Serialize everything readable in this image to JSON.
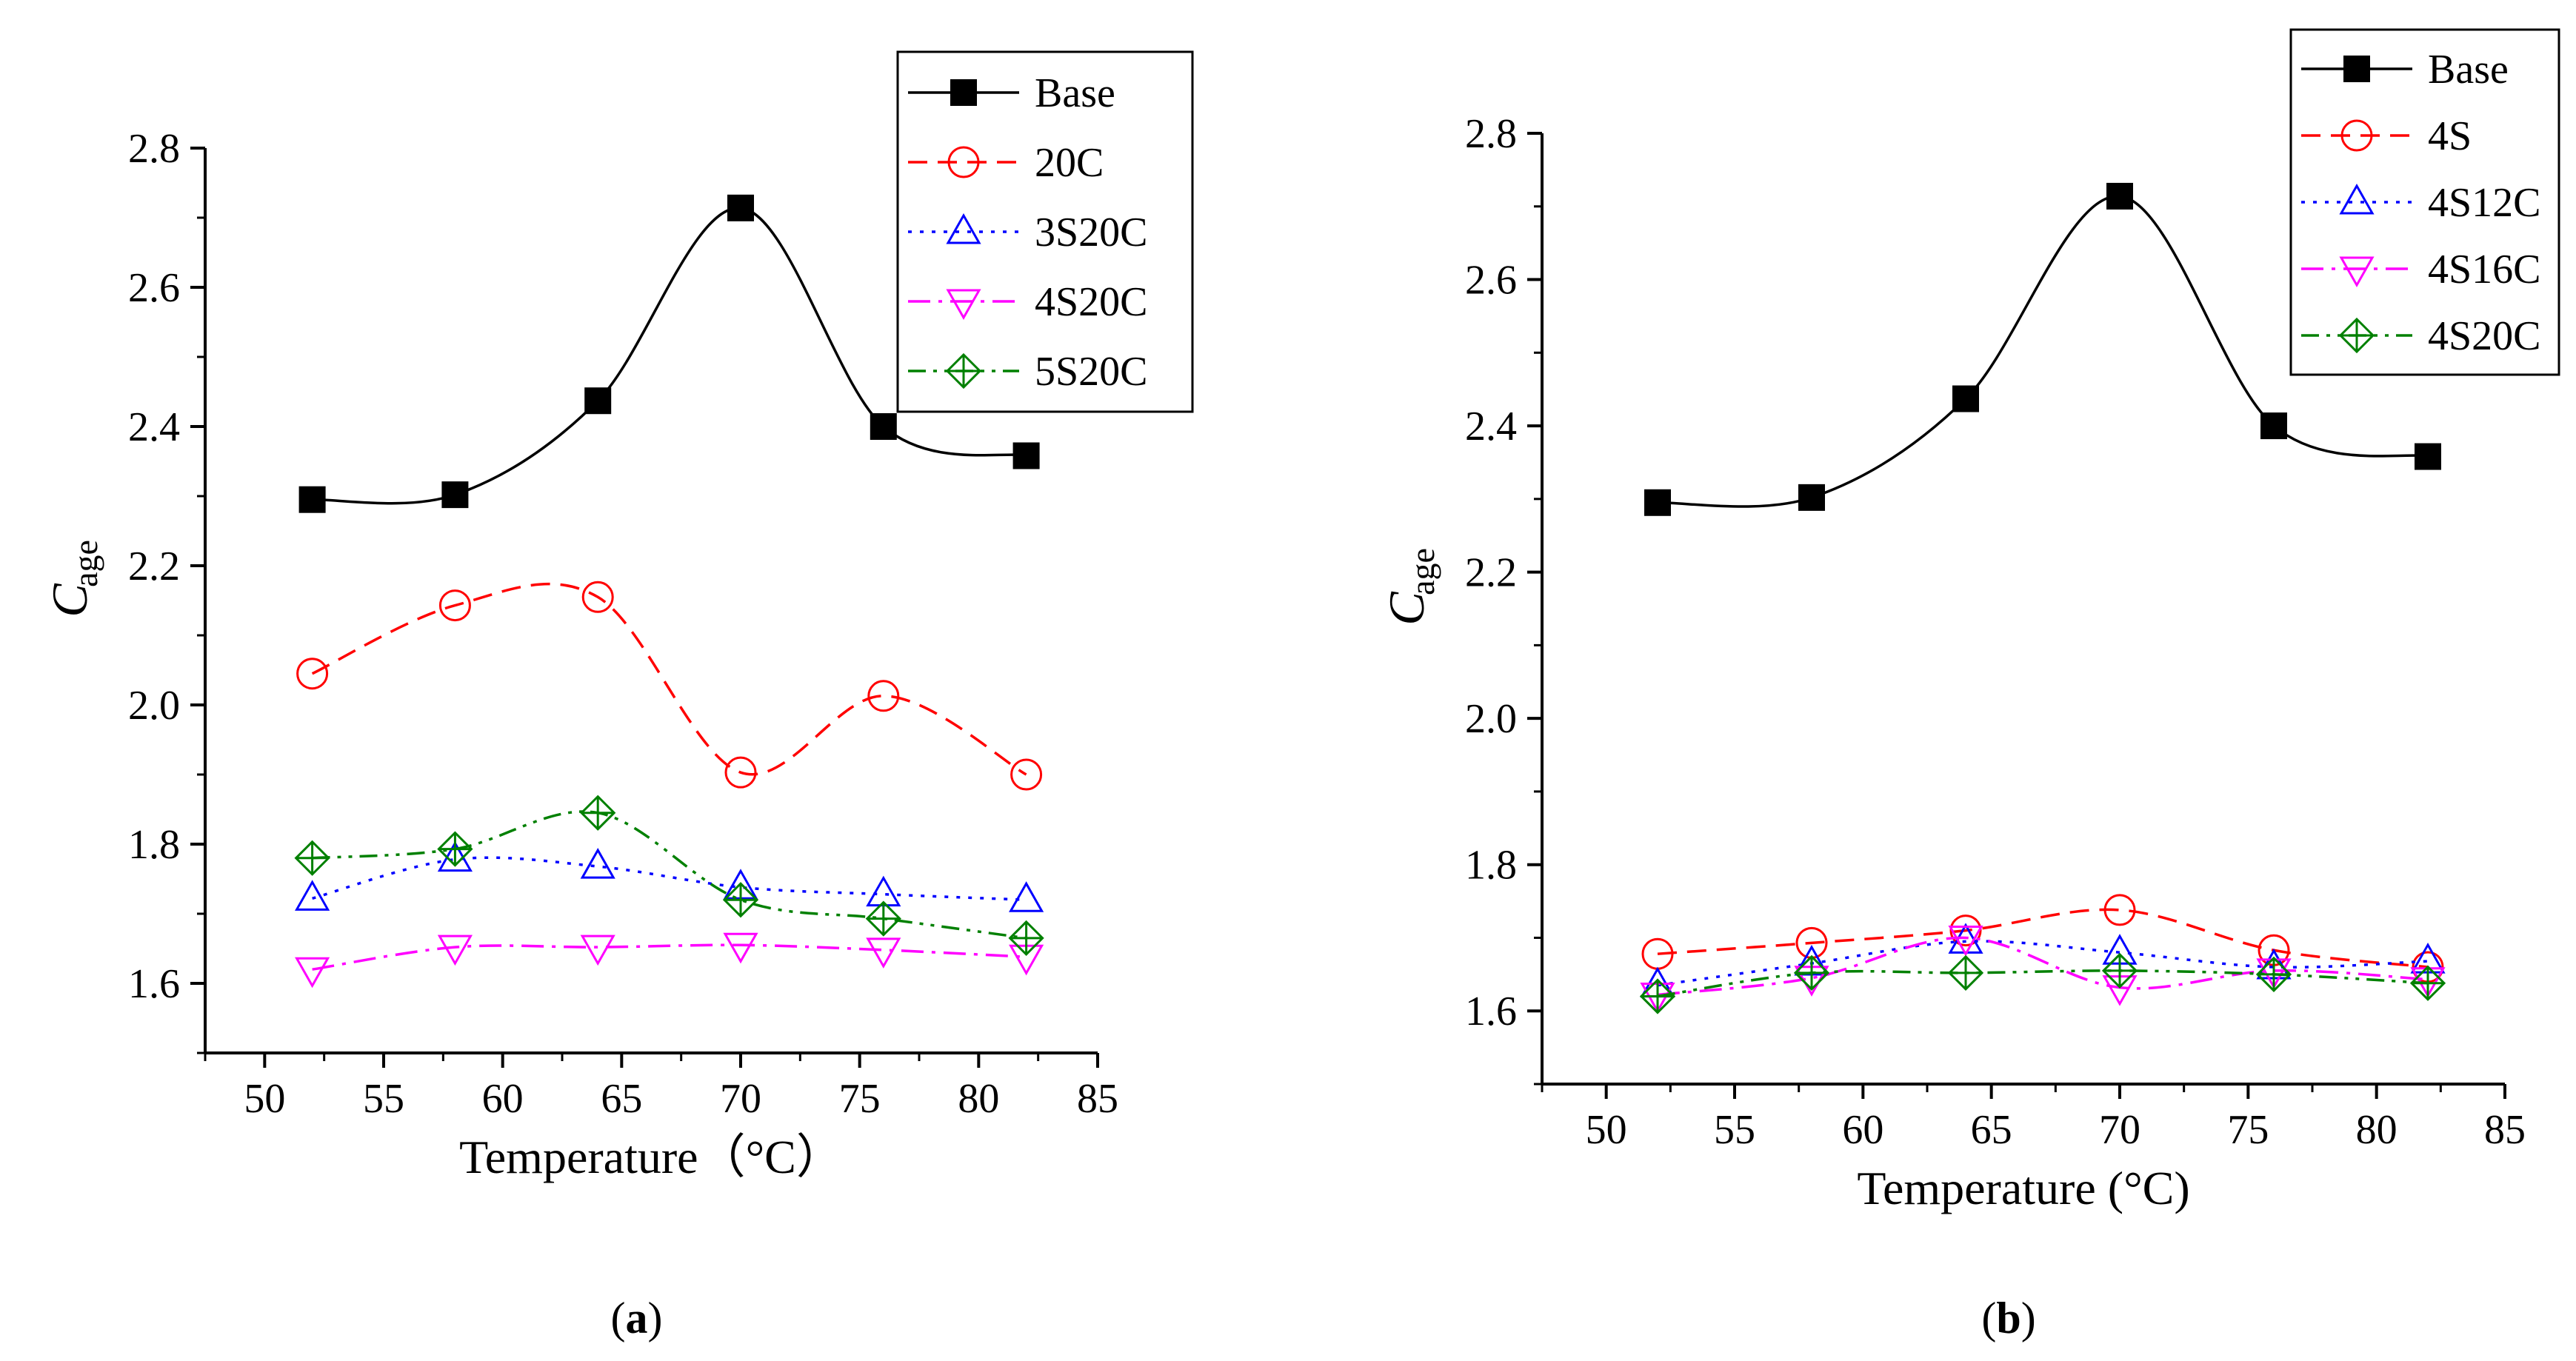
{
  "chart_data": [
    {
      "type": "line",
      "panel_label": "a",
      "title": "",
      "xlabel": "Temperature（°C）",
      "ylabel": "C",
      "ylabel_sub": "age",
      "xlim": [
        47.5,
        85
      ],
      "ylim": [
        1.5,
        2.8
      ],
      "xticks": [
        50,
        55,
        60,
        65,
        70,
        75,
        80,
        85
      ],
      "yticks": [
        1.6,
        1.8,
        2.0,
        2.2,
        2.4,
        2.6,
        2.8
      ],
      "ytick_labels": [
        "1.6",
        "1.8",
        "2.0",
        "2.2",
        "2.4",
        "2.6",
        "2.8"
      ],
      "grid": false,
      "legend_position": "top-right",
      "x": [
        52,
        58,
        64,
        70,
        76,
        82
      ],
      "series": [
        {
          "name": "Base",
          "values": [
            2.295,
            2.302,
            2.437,
            2.714,
            2.4,
            2.358
          ],
          "color": "#000000",
          "dash": "solid",
          "marker": "square-filled"
        },
        {
          "name": "20C",
          "values": [
            2.045,
            2.143,
            2.155,
            1.903,
            2.013,
            1.9
          ],
          "color": "#ff0000",
          "dash": "dash",
          "marker": "circle"
        },
        {
          "name": "3S20C",
          "values": [
            1.722,
            1.778,
            1.768,
            1.738,
            1.728,
            1.72
          ],
          "color": "#0000ff",
          "dash": "dot",
          "marker": "triangle-up"
        },
        {
          "name": "4S20C",
          "values": [
            1.62,
            1.652,
            1.652,
            1.655,
            1.648,
            1.638
          ],
          "color": "#ff00ff",
          "dash": "dashdot",
          "marker": "triangle-down"
        },
        {
          "name": "5S20C",
          "values": [
            1.78,
            1.793,
            1.845,
            1.72,
            1.693,
            1.665
          ],
          "color": "#008000",
          "dash": "dashdotdot",
          "marker": "diamond-cross"
        }
      ]
    },
    {
      "type": "line",
      "panel_label": "b",
      "title": "",
      "xlabel": "Temperature (°C)",
      "ylabel": "C",
      "ylabel_sub": "age",
      "xlim": [
        47.5,
        85
      ],
      "ylim": [
        1.5,
        2.8
      ],
      "xticks": [
        50,
        55,
        60,
        65,
        70,
        75,
        80,
        85
      ],
      "yticks": [
        1.6,
        1.8,
        2.0,
        2.2,
        2.4,
        2.6,
        2.8
      ],
      "ytick_labels": [
        "1.6",
        "1.8",
        "2.0",
        "2.2",
        "2.4",
        "2.6",
        "2.8"
      ],
      "grid": false,
      "legend_position": "top-right",
      "x": [
        52,
        58,
        64,
        70,
        76,
        82
      ],
      "series": [
        {
          "name": "Base",
          "values": [
            2.295,
            2.302,
            2.437,
            2.714,
            2.4,
            2.358
          ],
          "color": "#000000",
          "dash": "solid",
          "marker": "square-filled"
        },
        {
          "name": "4S",
          "values": [
            1.678,
            1.693,
            1.71,
            1.738,
            1.683,
            1.66
          ],
          "color": "#ff0000",
          "dash": "dash",
          "marker": "circle"
        },
        {
          "name": "4S12C",
          "values": [
            1.635,
            1.665,
            1.695,
            1.68,
            1.66,
            1.668
          ],
          "color": "#0000ff",
          "dash": "dot",
          "marker": "triangle-up"
        },
        {
          "name": "4S16C",
          "values": [
            1.622,
            1.645,
            1.7,
            1.632,
            1.655,
            1.643
          ],
          "color": "#ff00ff",
          "dash": "dashdot",
          "marker": "triangle-down"
        },
        {
          "name": "4S20C",
          "values": [
            1.62,
            1.652,
            1.652,
            1.655,
            1.65,
            1.638
          ],
          "color": "#008000",
          "dash": "dashdotdot",
          "marker": "diamond-cross"
        }
      ]
    }
  ]
}
